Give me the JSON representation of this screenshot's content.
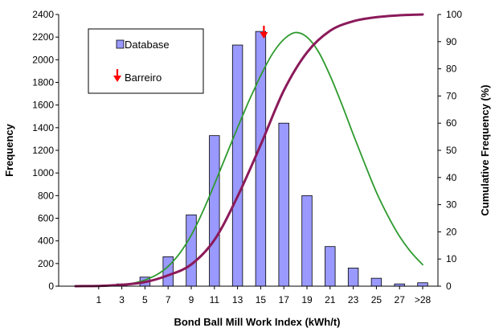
{
  "chart_data": {
    "type": "bar",
    "xlabel": "Bond Ball Mill Work Index (kWh/t)",
    "ylabel": "Frequency",
    "y2label": "Cumulative Frequency (%)",
    "categories": [
      "1",
      "3",
      "5",
      "7",
      "9",
      "11",
      "13",
      "15",
      "17",
      "19",
      "21",
      "23",
      "25",
      "27",
      ">28"
    ],
    "ylim": [
      0,
      2400
    ],
    "y_ticks": [
      0,
      200,
      400,
      600,
      800,
      1000,
      1200,
      1400,
      1600,
      1800,
      2000,
      2200,
      2400
    ],
    "y2lim": [
      0,
      100
    ],
    "y2_ticks": [
      0,
      10,
      20,
      30,
      40,
      50,
      60,
      70,
      80,
      90,
      100
    ],
    "grid": false,
    "legend_position": "top-left",
    "legend": {
      "database_label": "Database",
      "barreiro_label": "Barreiro"
    },
    "series": [
      {
        "name": "Database",
        "kind": "bar",
        "color": "#9999ff",
        "values": [
          0,
          20,
          80,
          260,
          630,
          1330,
          2130,
          2250,
          1440,
          800,
          350,
          160,
          70,
          20,
          30
        ]
      },
      {
        "kind": "line",
        "axis": "left",
        "color": "#2e9a2e",
        "note": "normal fit",
        "x": [
          -1,
          0,
          1,
          2,
          3,
          4,
          5,
          6,
          7,
          8,
          9,
          10,
          11,
          12,
          13,
          13.5,
          14,
          14.5,
          15,
          16,
          17,
          18,
          19,
          20,
          21,
          22,
          23,
          24,
          25,
          26,
          27,
          28,
          29
        ],
        "values": [
          0,
          1,
          3,
          6,
          13,
          27,
          55,
          100,
          175,
          290,
          450,
          660,
          900,
          1150,
          1400,
          1520,
          1640,
          1750,
          1860,
          2050,
          2180,
          2240,
          2200,
          2070,
          1860,
          1610,
          1340,
          1080,
          830,
          620,
          440,
          300,
          190
        ]
      },
      {
        "kind": "line",
        "axis": "right",
        "color": "#8b1a5a",
        "note": "cumulative",
        "x": [
          -1,
          1,
          3,
          5,
          7,
          9,
          11,
          13,
          15,
          17,
          19,
          21,
          23,
          25,
          27,
          29
        ],
        "values": [
          0,
          0.1,
          0.5,
          1.5,
          4,
          8,
          17,
          33,
          52,
          72,
          86,
          94,
          97.5,
          99,
          99.7,
          100
        ]
      }
    ],
    "markers": [
      {
        "name": "Barreiro",
        "x": 15,
        "color": "#ff0000"
      }
    ]
  }
}
